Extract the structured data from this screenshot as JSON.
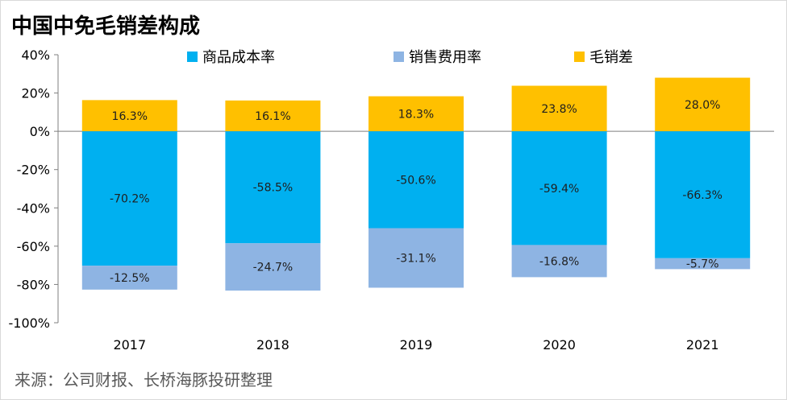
{
  "title": "中国中免毛销差构成",
  "source": "来源：公司财报、长桥海豚投研整理",
  "chart_data": {
    "type": "bar",
    "stacked": true,
    "categories": [
      "2017",
      "2018",
      "2019",
      "2020",
      "2021"
    ],
    "series": [
      {
        "name": "毛销差",
        "values": [
          16.3,
          16.1,
          18.3,
          23.8,
          28.0
        ],
        "labels": [
          "16.3%",
          "16.1%",
          "18.3%",
          "23.8%",
          "28.0%"
        ],
        "color": "#FFC000"
      },
      {
        "name": "商品成本率",
        "values": [
          -70.2,
          -58.5,
          -50.6,
          -59.4,
          -66.3
        ],
        "labels": [
          "-70.2%",
          "-58.5%",
          "-50.6%",
          "-59.4%",
          "-66.3%"
        ],
        "color": "#00B0F0"
      },
      {
        "name": "销售费用率",
        "values": [
          -12.5,
          -24.7,
          -31.1,
          -16.8,
          -5.7
        ],
        "labels": [
          "-12.5%",
          "-24.7%",
          "-31.1%",
          "-16.8%",
          "-5.7%"
        ],
        "color": "#8EB4E3"
      }
    ],
    "legend": [
      {
        "name": "商品成本率",
        "color": "#00B0F0"
      },
      {
        "name": "销售费用率",
        "color": "#8EB4E3"
      },
      {
        "name": "毛销差",
        "color": "#FFC000"
      }
    ],
    "legend_position": "top",
    "ylim": [
      -100,
      40
    ],
    "yticks": [
      40,
      20,
      0,
      -20,
      -40,
      -60,
      -80,
      -100
    ],
    "ytick_labels": [
      "40%",
      "20%",
      "0%",
      "-20%",
      "-40%",
      "-60%",
      "-80%",
      "-100%"
    ],
    "grid": false
  }
}
